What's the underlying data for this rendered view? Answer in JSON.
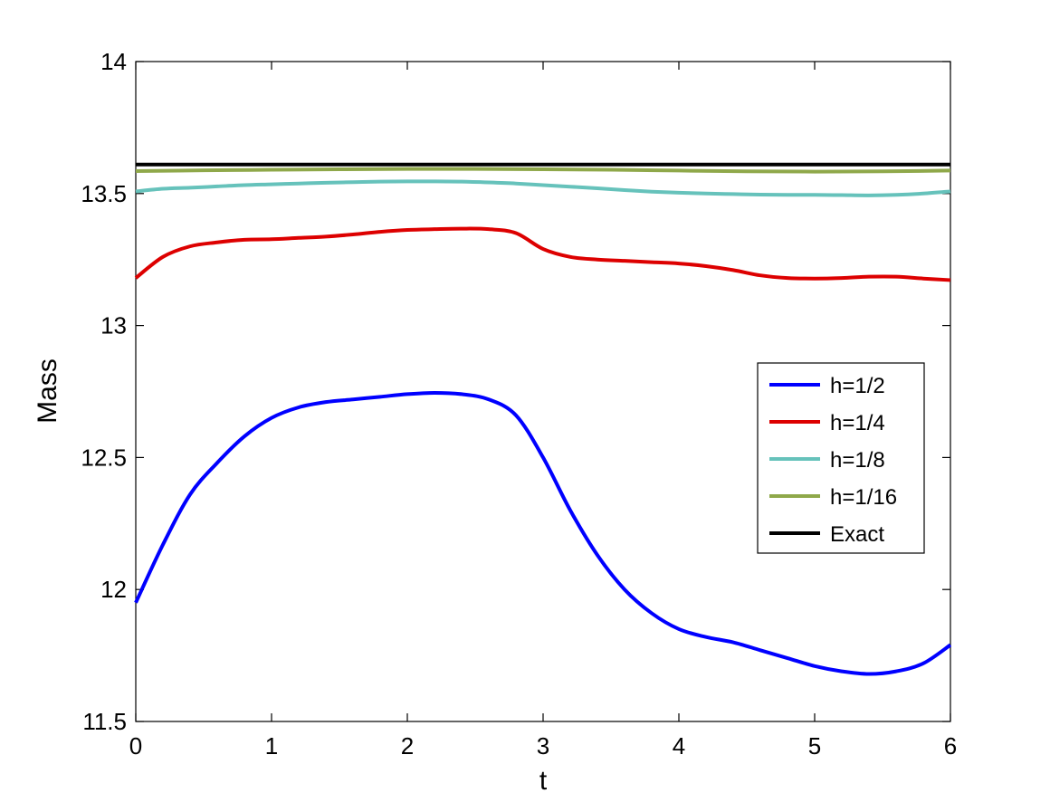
{
  "chart_data": {
    "type": "line",
    "title": "",
    "xlabel": "t",
    "ylabel": "Mass",
    "xlim": [
      0,
      6
    ],
    "ylim": [
      11.5,
      14
    ],
    "xticks": [
      0,
      1,
      2,
      3,
      4,
      5,
      6
    ],
    "yticks": [
      11.5,
      12,
      12.5,
      13,
      13.5,
      14
    ],
    "xtick_labels": [
      "0",
      "1",
      "2",
      "3",
      "4",
      "5",
      "6"
    ],
    "ytick_labels": [
      "11.5",
      "12",
      "12.5",
      "13",
      "13.5",
      "14"
    ],
    "grid": false,
    "legend_position": "center-right",
    "series": [
      {
        "name": "h=1/2",
        "color": "#0000ff",
        "x": [
          0,
          0.2,
          0.4,
          0.6,
          0.8,
          1.0,
          1.2,
          1.4,
          1.6,
          1.8,
          2.0,
          2.2,
          2.4,
          2.6,
          2.8,
          3.0,
          3.2,
          3.4,
          3.6,
          3.8,
          4.0,
          4.2,
          4.4,
          4.6,
          4.8,
          5.0,
          5.2,
          5.4,
          5.6,
          5.8,
          6.0
        ],
        "y": [
          11.95,
          12.17,
          12.36,
          12.48,
          12.58,
          12.65,
          12.69,
          12.71,
          12.72,
          12.73,
          12.74,
          12.745,
          12.74,
          12.72,
          12.66,
          12.5,
          12.3,
          12.13,
          12.0,
          11.91,
          11.85,
          11.82,
          11.8,
          11.77,
          11.74,
          11.71,
          11.69,
          11.68,
          11.69,
          11.72,
          11.79
        ]
      },
      {
        "name": "h=1/4",
        "color": "#dd0000",
        "x": [
          0,
          0.2,
          0.4,
          0.6,
          0.8,
          1.0,
          1.2,
          1.4,
          1.6,
          1.8,
          2.0,
          2.2,
          2.4,
          2.6,
          2.8,
          3.0,
          3.2,
          3.4,
          3.6,
          3.8,
          4.0,
          4.2,
          4.4,
          4.6,
          4.8,
          5.0,
          5.2,
          5.4,
          5.6,
          5.8,
          6.0
        ],
        "y": [
          13.18,
          13.26,
          13.3,
          13.315,
          13.325,
          13.327,
          13.332,
          13.337,
          13.345,
          13.355,
          13.362,
          13.365,
          13.367,
          13.365,
          13.35,
          13.29,
          13.26,
          13.25,
          13.245,
          13.24,
          13.235,
          13.225,
          13.21,
          13.19,
          13.18,
          13.178,
          13.18,
          13.185,
          13.185,
          13.178,
          13.172
        ]
      },
      {
        "name": "h=1/8",
        "color": "#66c2bb",
        "x": [
          0,
          0.2,
          0.4,
          0.6,
          0.8,
          1.0,
          1.2,
          1.4,
          1.6,
          1.8,
          2.0,
          2.2,
          2.4,
          2.6,
          2.8,
          3.0,
          3.2,
          3.4,
          3.6,
          3.8,
          4.0,
          4.2,
          4.4,
          4.6,
          4.8,
          5.0,
          5.2,
          5.4,
          5.6,
          5.8,
          6.0
        ],
        "y": [
          13.508,
          13.518,
          13.522,
          13.527,
          13.532,
          13.535,
          13.538,
          13.541,
          13.543,
          13.545,
          13.546,
          13.546,
          13.545,
          13.542,
          13.538,
          13.532,
          13.526,
          13.52,
          13.513,
          13.507,
          13.503,
          13.5,
          13.498,
          13.496,
          13.495,
          13.495,
          13.494,
          13.493,
          13.495,
          13.5,
          13.508
        ]
      },
      {
        "name": "h=1/16",
        "color": "#8fa84a",
        "x": [
          0,
          0.5,
          1.0,
          1.5,
          2.0,
          2.5,
          3.0,
          3.5,
          4.0,
          4.5,
          5.0,
          5.5,
          6.0
        ],
        "y": [
          13.585,
          13.588,
          13.59,
          13.592,
          13.593,
          13.593,
          13.592,
          13.59,
          13.587,
          13.584,
          13.583,
          13.584,
          13.587
        ]
      },
      {
        "name": "Exact",
        "color": "#000000",
        "x": [
          0,
          6
        ],
        "y": [
          13.61,
          13.61
        ]
      }
    ]
  }
}
